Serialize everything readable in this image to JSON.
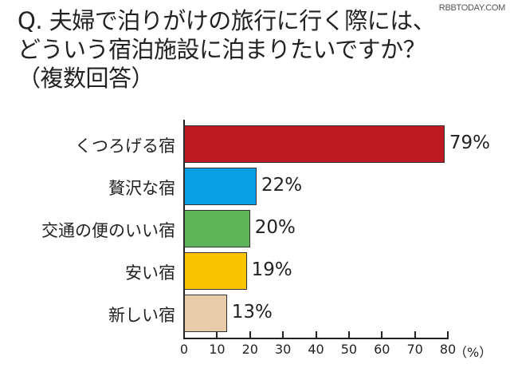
{
  "watermark": "RBBTODAY.COM",
  "title": {
    "line1": "Q. 夫婦で泊りがけの旅行に行く際には、",
    "line2": "どういう宿泊施設に泊まりたいですか？",
    "line3": "（複数回答）"
  },
  "chart_data": {
    "type": "bar",
    "orientation": "horizontal",
    "title": "Q. 夫婦で泊りがけの旅行に行く際には、どういう宿泊施設に泊まりたいですか？（複数回答）",
    "categories": [
      "くつろげる宿",
      "贅沢な宿",
      "交通の便のいい宿",
      "安い宿",
      "新しい宿"
    ],
    "values": [
      79,
      22,
      20,
      19,
      13
    ],
    "value_labels": [
      "79%",
      "22%",
      "20%",
      "19%",
      "13%"
    ],
    "colors": [
      "#be1a22",
      "#0a9ee4",
      "#5fb45a",
      "#fbc400",
      "#e8cba8"
    ],
    "xlabel": "(%)",
    "ylabel": "",
    "xlim": [
      0,
      80
    ],
    "xticks": [
      "0",
      "10",
      "20",
      "30",
      "40",
      "50",
      "60",
      "70",
      "80"
    ],
    "grid": false,
    "legend": "none"
  },
  "axis": {
    "unit": "（%）"
  }
}
